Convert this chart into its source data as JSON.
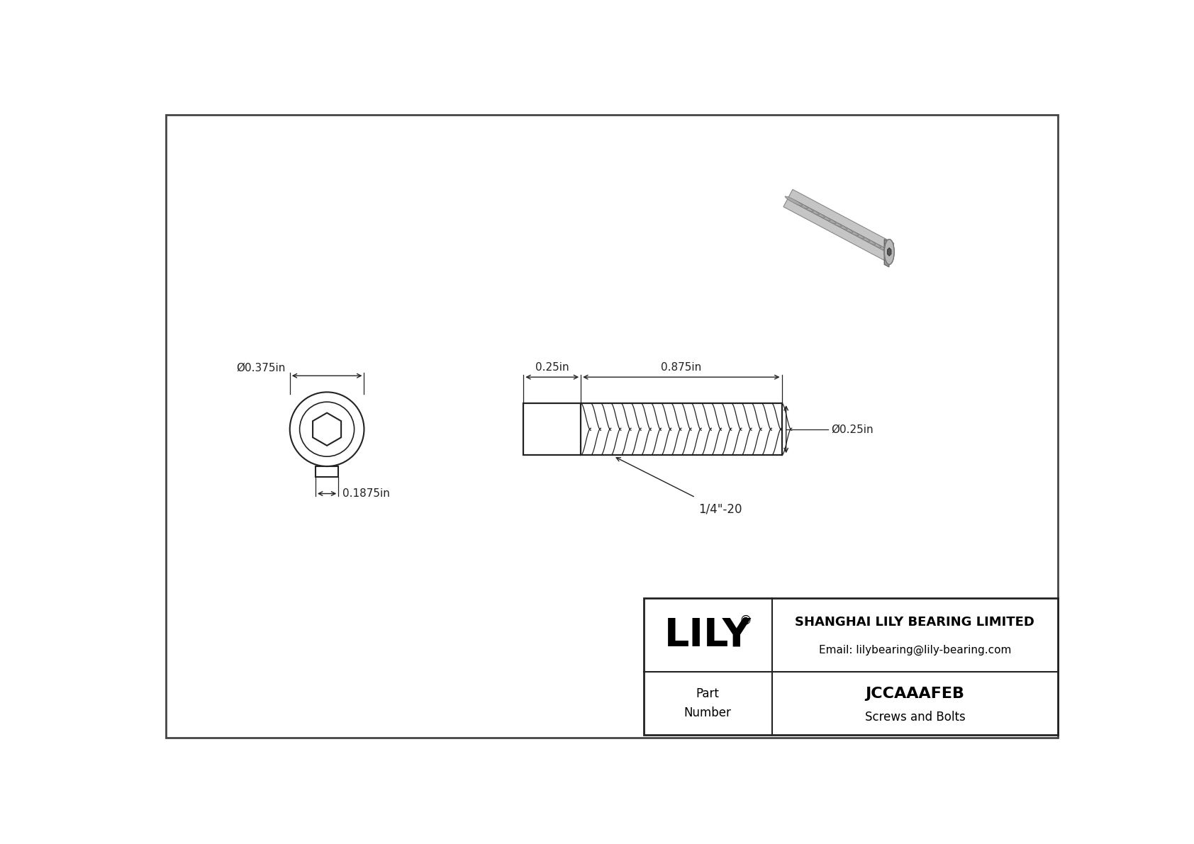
{
  "bg_color": "#ffffff",
  "line_color": "#222222",
  "dim_color": "#222222",
  "title_company": "SHANGHAI LILY BEARING LIMITED",
  "title_email": "Email: lilybearing@lily-bearing.com",
  "part_number": "JCCAAAFEB",
  "part_category": "Screws and Bolts",
  "logo_text": "LILY",
  "dim_head_width": "0.375in",
  "dim_head_length": "0.1875in",
  "dim_shank_length": "0.875in",
  "dim_head_section": "0.25in",
  "dim_shank_dia": "0.25in",
  "thread_label": "1/4\"-20",
  "outer_border_color": "#444444",
  "table_border_color": "#222222"
}
